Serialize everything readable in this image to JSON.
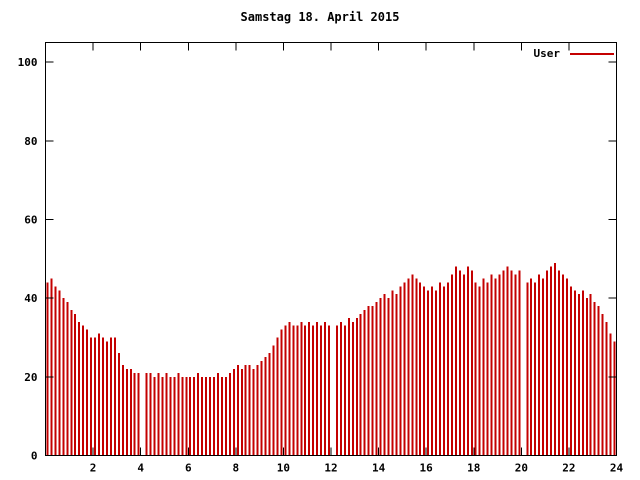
{
  "title": "Samstag 18. April 2015",
  "legend": {
    "label": "User"
  },
  "colors": {
    "bar": "#c40000",
    "axis": "#000000",
    "background": "#ffffff",
    "text": "#000000"
  },
  "chart_data": {
    "type": "bar",
    "title": "Samstag 18. April 2015",
    "xlabel": "",
    "ylabel": "",
    "xlim": [
      0,
      24
    ],
    "ylim": [
      0,
      105
    ],
    "x_ticks": [
      2,
      4,
      6,
      8,
      10,
      12,
      14,
      16,
      18,
      20,
      22,
      24
    ],
    "y_ticks": [
      0,
      20,
      40,
      60,
      80,
      100
    ],
    "grid": false,
    "legend_position": "top-right-inside",
    "series": [
      {
        "name": "User",
        "color": "#c40000",
        "start_hour": 0,
        "interval_minutes": 10,
        "values": [
          44,
          45,
          43,
          42,
          40,
          39,
          37,
          36,
          34,
          33,
          32,
          30,
          30,
          31,
          30,
          29,
          30,
          30,
          26,
          23,
          22,
          22,
          21,
          21,
          null,
          21,
          21,
          20,
          21,
          20,
          21,
          20,
          20,
          21,
          20,
          20,
          20,
          20,
          21,
          20,
          20,
          20,
          20,
          21,
          20,
          20,
          21,
          22,
          23,
          22,
          23,
          23,
          22,
          23,
          24,
          25,
          26,
          28,
          30,
          32,
          33,
          34,
          33,
          33,
          34,
          33,
          34,
          33,
          34,
          33,
          34,
          33,
          null,
          33,
          34,
          33,
          35,
          34,
          35,
          36,
          37,
          38,
          38,
          39,
          40,
          41,
          40,
          42,
          41,
          43,
          44,
          45,
          46,
          45,
          44,
          43,
          42,
          43,
          42,
          44,
          43,
          44,
          46,
          48,
          47,
          46,
          48,
          47,
          44,
          43,
          45,
          44,
          46,
          45,
          46,
          47,
          48,
          47,
          46,
          47,
          null,
          44,
          45,
          44,
          46,
          45,
          47,
          48,
          49,
          47,
          46,
          45,
          43,
          42,
          41,
          42,
          40,
          41,
          39,
          38,
          36,
          34,
          31,
          29
        ]
      }
    ]
  }
}
